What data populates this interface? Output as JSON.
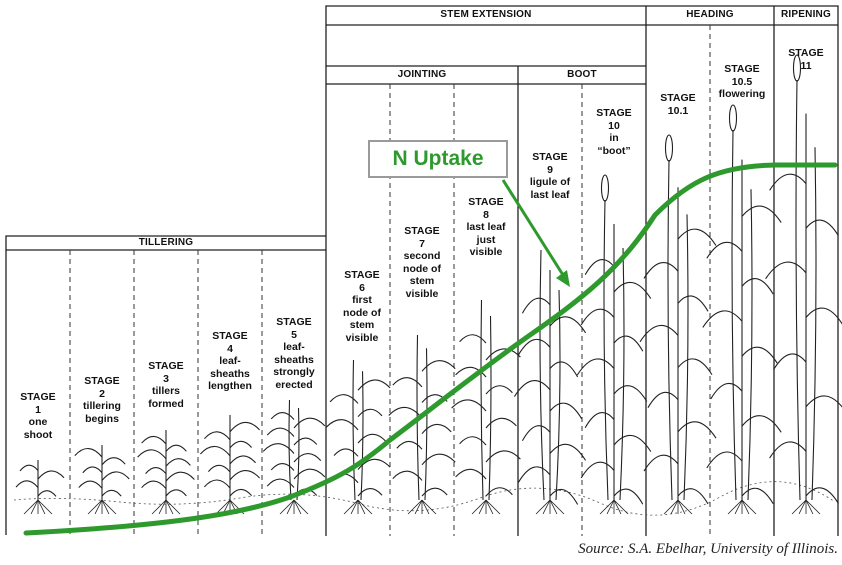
{
  "headers": {
    "tillering": "TILLERING",
    "stem_extension": "STEM EXTENSION",
    "jointing": "JOINTING",
    "boot": "BOOT",
    "heading": "HEADING",
    "ripening": "RIPENING"
  },
  "stages": [
    {
      "lines": [
        "STAGE",
        "1",
        "one",
        "shoot"
      ]
    },
    {
      "lines": [
        "STAGE",
        "2",
        "tillering",
        "begins"
      ]
    },
    {
      "lines": [
        "STAGE",
        "3",
        "tillers",
        "formed"
      ]
    },
    {
      "lines": [
        "STAGE",
        "4",
        "leaf-",
        "sheaths",
        "lengthen"
      ]
    },
    {
      "lines": [
        "STAGE",
        "5",
        "leaf-",
        "sheaths",
        "strongly",
        "erected"
      ]
    },
    {
      "lines": [
        "STAGE",
        "6",
        "first",
        "node of",
        "stem",
        "visible"
      ]
    },
    {
      "lines": [
        "STAGE",
        "7",
        "second",
        "node of",
        "stem",
        "visible"
      ]
    },
    {
      "lines": [
        "STAGE",
        "8",
        "last leaf",
        "just",
        "visible"
      ]
    },
    {
      "lines": [
        "STAGE",
        "9",
        "ligule of",
        "last leaf"
      ]
    },
    {
      "lines": [
        "STAGE",
        "10",
        "in",
        "“boot”"
      ]
    },
    {
      "lines": [
        "STAGE",
        "10.1"
      ]
    },
    {
      "lines": [
        "STAGE",
        "10.5",
        "flowering"
      ]
    },
    {
      "lines": [
        "STAGE",
        "11"
      ]
    }
  ],
  "annotation": {
    "label": "N Uptake",
    "color": "#2e9a2e"
  },
  "source": "Source: S.A. Ebelhar, University of Illinois."
}
